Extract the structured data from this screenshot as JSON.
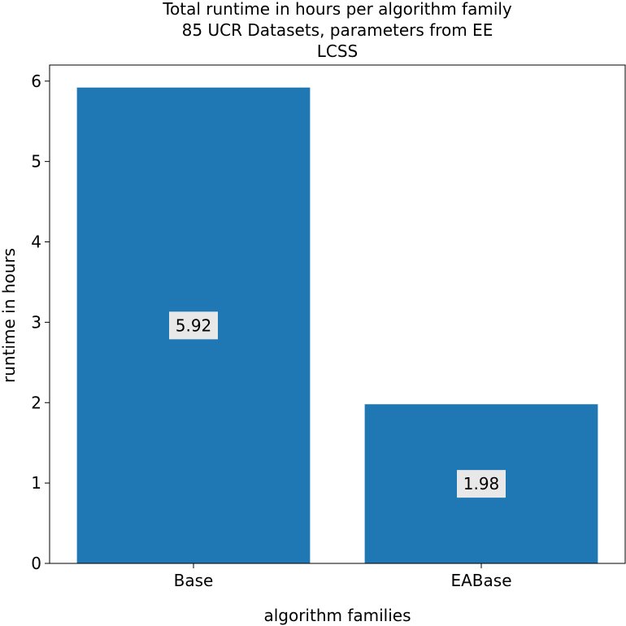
{
  "chart_data": {
    "type": "bar",
    "title_lines": [
      "Total runtime in hours per algorithm family",
      "85 UCR Datasets, parameters from EE",
      "LCSS"
    ],
    "xlabel": "algorithm families",
    "ylabel": "runtime in hours",
    "categories": [
      "Base",
      "EABase"
    ],
    "values": [
      5.92,
      1.98
    ],
    "value_labels": [
      "5.92",
      "1.98"
    ],
    "ylim": [
      0,
      6.2
    ],
    "yticks": [
      0,
      1,
      2,
      3,
      4,
      5,
      6
    ],
    "bar_color": "#1f77b4",
    "label_box_color": "#e8e8e8",
    "grid": false
  }
}
